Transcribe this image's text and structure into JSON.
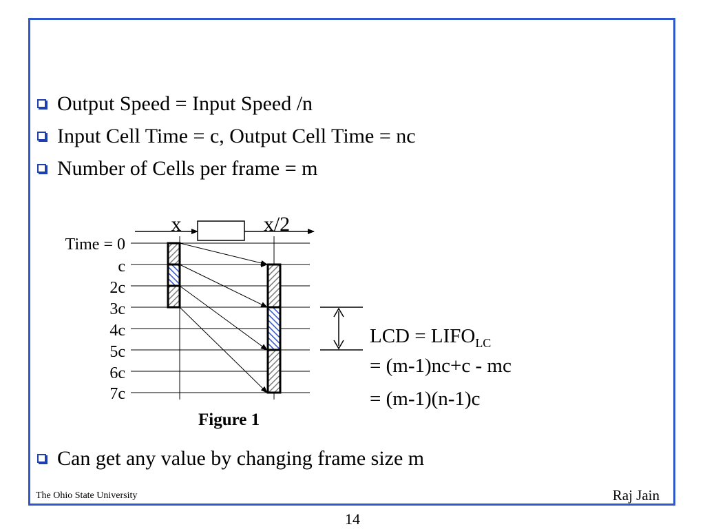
{
  "bullets": [
    "Output Speed = Input Speed /n",
    "Input Cell Time = c, Output Cell Time  = nc",
    "Number of Cells per frame = m",
    "Can get any value by changing frame size m"
  ],
  "diagram": {
    "input_label": "x",
    "output_label": "x/2",
    "time_labels": [
      "Time = 0",
      "c",
      "2c",
      "3c",
      "4c",
      "5c",
      "6c",
      "7c"
    ],
    "figure_caption": "Figure 1",
    "equation": {
      "line1_main": "LCD = LIFO",
      "line1_sub": "LC",
      "line2": "= (m-1)nc+c - mc",
      "line3": "= (m-1)(n-1)c"
    }
  },
  "footer": {
    "left": "The Ohio State University",
    "right": "Raj Jain"
  },
  "page_number": "14",
  "colors": {
    "frame_border": "#2f57c8",
    "bullet_box": "#1f3fae",
    "highlight_cell": "#3355cc"
  }
}
